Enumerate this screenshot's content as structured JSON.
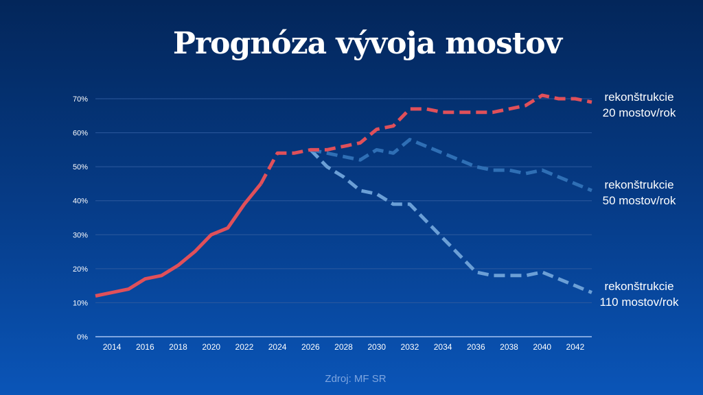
{
  "chart_data": {
    "type": "line",
    "title": "Prognóza vývoja mostov",
    "source": "Zdroj: MF SR",
    "xlabel": "",
    "ylabel": "",
    "ylim": [
      0,
      70
    ],
    "xlim": [
      2013,
      2043
    ],
    "y_ticks": [
      "0%",
      "10%",
      "20%",
      "30%",
      "40%",
      "50%",
      "60%",
      "70%"
    ],
    "x_ticks": [
      "2014",
      "2016",
      "2018",
      "2020",
      "2022",
      "2024",
      "2026",
      "2028",
      "2030",
      "2032",
      "2034",
      "2036",
      "2038",
      "2040",
      "2042"
    ],
    "grid": true,
    "series": [
      {
        "name": "historical",
        "color": "#e0505a",
        "style": "solid",
        "x": [
          2013,
          2014,
          2015,
          2016,
          2017,
          2018,
          2019,
          2020,
          2021,
          2022,
          2023
        ],
        "values": [
          12,
          13,
          14,
          17,
          18,
          21,
          25,
          30,
          32,
          39,
          45
        ]
      },
      {
        "name": "rekonštrukcie 20 mostov/rok",
        "label_lines": [
          "rekonštrukcie",
          "20 mostov/rok"
        ],
        "color": "#e0505a",
        "style": "dashed",
        "x": [
          2023,
          2024,
          2025,
          2026,
          2027,
          2028,
          2029,
          2030,
          2031,
          2032,
          2033,
          2034,
          2035,
          2036,
          2037,
          2038,
          2039,
          2040,
          2041,
          2042,
          2043
        ],
        "values": [
          45,
          54,
          54,
          55,
          55,
          56,
          57,
          61,
          62,
          67,
          67,
          66,
          66,
          66,
          66,
          67,
          68,
          71,
          70,
          70,
          69
        ]
      },
      {
        "name": "rekonštrukcie 50 mostov/rok",
        "label_lines": [
          "rekonštrukcie",
          "50 mostov/rok"
        ],
        "color": "#2f6fb5",
        "style": "dashed",
        "x": [
          2026,
          2027,
          2028,
          2029,
          2030,
          2031,
          2032,
          2033,
          2034,
          2035,
          2036,
          2037,
          2038,
          2039,
          2040,
          2041,
          2042,
          2043
        ],
        "values": [
          55,
          54,
          53,
          52,
          55,
          54,
          58,
          56,
          54,
          52,
          50,
          49,
          49,
          48,
          49,
          47,
          45,
          43
        ]
      },
      {
        "name": "rekonštrukcie 110 mostov/rok",
        "label_lines": [
          "rekonštrukcie",
          "110 mostov/rok"
        ],
        "color": "#6b9fd6",
        "style": "dashed",
        "x": [
          2026,
          2027,
          2028,
          2029,
          2030,
          2031,
          2032,
          2033,
          2034,
          2035,
          2036,
          2037,
          2038,
          2039,
          2040,
          2041,
          2042,
          2043
        ],
        "values": [
          55,
          50,
          47,
          43,
          42,
          39,
          39,
          34,
          29,
          24,
          19,
          18,
          18,
          18,
          19,
          17,
          15,
          13
        ]
      }
    ]
  }
}
